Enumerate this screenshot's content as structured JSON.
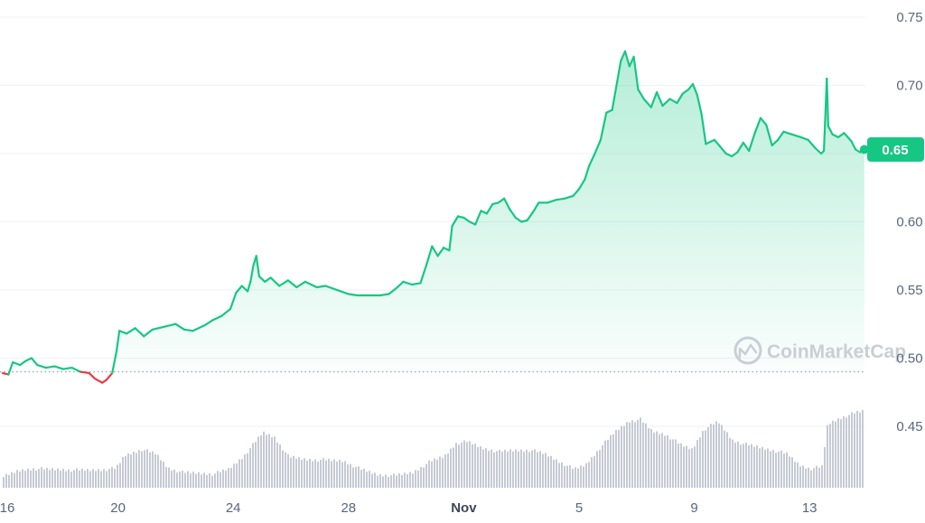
{
  "chart_data": {
    "type": "area",
    "watermark": "CoinMarketCap",
    "current_price_label": "0.65",
    "baseline_value": 0.49,
    "ylim": [
      0.41,
      0.755
    ],
    "y_ticks": [
      "0.75",
      "0.70",
      "0.65",
      "0.60",
      "0.55",
      "0.50",
      "0.45"
    ],
    "y_tick_values": [
      0.75,
      0.7,
      0.65,
      0.6,
      0.55,
      0.5,
      0.45
    ],
    "x_ticks": [
      "16",
      "20",
      "24",
      "28",
      "Nov",
      "5",
      "9",
      "13"
    ],
    "x_tick_days": [
      0,
      4,
      8,
      12,
      16,
      20,
      24,
      28
    ],
    "x_range_days": [
      0,
      29.9
    ],
    "grid": true,
    "colors": {
      "up": "#16c784",
      "down": "#ea3943",
      "volume": "#c5cad3",
      "grid": "#eff2f5",
      "label_bg": "#16c784"
    },
    "price_series": [
      [
        0.0,
        0.489
      ],
      [
        0.2,
        0.488
      ],
      [
        0.35,
        0.497
      ],
      [
        0.6,
        0.495
      ],
      [
        0.8,
        0.498
      ],
      [
        1.0,
        0.5
      ],
      [
        1.2,
        0.495
      ],
      [
        1.5,
        0.493
      ],
      [
        1.8,
        0.494
      ],
      [
        2.1,
        0.492
      ],
      [
        2.4,
        0.493
      ],
      [
        2.7,
        0.49
      ],
      [
        3.0,
        0.489
      ],
      [
        3.2,
        0.485
      ],
      [
        3.45,
        0.482
      ],
      [
        3.6,
        0.484
      ],
      [
        3.8,
        0.489
      ],
      [
        3.95,
        0.505
      ],
      [
        4.05,
        0.52
      ],
      [
        4.3,
        0.518
      ],
      [
        4.6,
        0.522
      ],
      [
        4.9,
        0.516
      ],
      [
        5.2,
        0.521
      ],
      [
        5.6,
        0.523
      ],
      [
        6.0,
        0.525
      ],
      [
        6.3,
        0.521
      ],
      [
        6.6,
        0.52
      ],
      [
        7.0,
        0.524
      ],
      [
        7.3,
        0.528
      ],
      [
        7.6,
        0.531
      ],
      [
        7.9,
        0.536
      ],
      [
        8.1,
        0.548
      ],
      [
        8.3,
        0.553
      ],
      [
        8.5,
        0.549
      ],
      [
        8.6,
        0.556
      ],
      [
        8.7,
        0.568
      ],
      [
        8.8,
        0.575
      ],
      [
        8.9,
        0.56
      ],
      [
        9.1,
        0.556
      ],
      [
        9.3,
        0.559
      ],
      [
        9.6,
        0.553
      ],
      [
        9.9,
        0.557
      ],
      [
        10.2,
        0.552
      ],
      [
        10.5,
        0.556
      ],
      [
        10.9,
        0.552
      ],
      [
        11.2,
        0.553
      ],
      [
        11.6,
        0.55
      ],
      [
        12.0,
        0.547
      ],
      [
        12.3,
        0.546
      ],
      [
        12.7,
        0.546
      ],
      [
        13.1,
        0.546
      ],
      [
        13.4,
        0.547
      ],
      [
        13.7,
        0.552
      ],
      [
        13.9,
        0.556
      ],
      [
        14.2,
        0.554
      ],
      [
        14.5,
        0.555
      ],
      [
        14.7,
        0.568
      ],
      [
        14.9,
        0.582
      ],
      [
        15.1,
        0.575
      ],
      [
        15.3,
        0.581
      ],
      [
        15.5,
        0.579
      ],
      [
        15.6,
        0.597
      ],
      [
        15.8,
        0.604
      ],
      [
        16.0,
        0.603
      ],
      [
        16.2,
        0.6
      ],
      [
        16.4,
        0.598
      ],
      [
        16.6,
        0.608
      ],
      [
        16.8,
        0.606
      ],
      [
        17.0,
        0.613
      ],
      [
        17.2,
        0.614
      ],
      [
        17.4,
        0.617
      ],
      [
        17.6,
        0.609
      ],
      [
        17.8,
        0.603
      ],
      [
        18.0,
        0.6
      ],
      [
        18.2,
        0.601
      ],
      [
        18.4,
        0.607
      ],
      [
        18.6,
        0.614
      ],
      [
        18.9,
        0.614
      ],
      [
        19.2,
        0.616
      ],
      [
        19.5,
        0.617
      ],
      [
        19.8,
        0.619
      ],
      [
        20.0,
        0.624
      ],
      [
        20.2,
        0.631
      ],
      [
        20.35,
        0.641
      ],
      [
        20.55,
        0.65
      ],
      [
        20.75,
        0.66
      ],
      [
        20.95,
        0.68
      ],
      [
        21.15,
        0.682
      ],
      [
        21.3,
        0.7
      ],
      [
        21.45,
        0.718
      ],
      [
        21.6,
        0.725
      ],
      [
        21.75,
        0.714
      ],
      [
        21.9,
        0.721
      ],
      [
        22.05,
        0.697
      ],
      [
        22.25,
        0.69
      ],
      [
        22.5,
        0.684
      ],
      [
        22.7,
        0.695
      ],
      [
        22.9,
        0.685
      ],
      [
        23.15,
        0.69
      ],
      [
        23.4,
        0.687
      ],
      [
        23.6,
        0.694
      ],
      [
        23.8,
        0.697
      ],
      [
        23.95,
        0.701
      ],
      [
        24.1,
        0.693
      ],
      [
        24.25,
        0.679
      ],
      [
        24.4,
        0.657
      ],
      [
        24.7,
        0.66
      ],
      [
        24.9,
        0.655
      ],
      [
        25.1,
        0.65
      ],
      [
        25.3,
        0.648
      ],
      [
        25.5,
        0.651
      ],
      [
        25.7,
        0.658
      ],
      [
        25.9,
        0.652
      ],
      [
        26.1,
        0.665
      ],
      [
        26.3,
        0.676
      ],
      [
        26.5,
        0.671
      ],
      [
        26.7,
        0.656
      ],
      [
        26.9,
        0.66
      ],
      [
        27.1,
        0.666
      ],
      [
        27.4,
        0.664
      ],
      [
        27.7,
        0.662
      ],
      [
        27.95,
        0.66
      ],
      [
        28.2,
        0.654
      ],
      [
        28.4,
        0.65
      ],
      [
        28.5,
        0.652
      ],
      [
        28.6,
        0.705
      ],
      [
        28.65,
        0.67
      ],
      [
        28.8,
        0.664
      ],
      [
        29.0,
        0.662
      ],
      [
        29.2,
        0.665
      ],
      [
        29.45,
        0.659
      ],
      [
        29.6,
        0.653
      ],
      [
        29.75,
        0.651
      ],
      [
        29.9,
        0.653
      ]
    ],
    "volume_profile": [
      [
        0.0,
        0.14
      ],
      [
        0.5,
        0.22
      ],
      [
        1.0,
        0.25
      ],
      [
        1.5,
        0.24
      ],
      [
        2.0,
        0.24
      ],
      [
        2.5,
        0.23
      ],
      [
        3.0,
        0.23
      ],
      [
        3.5,
        0.24
      ],
      [
        3.9,
        0.25
      ],
      [
        4.2,
        0.42
      ],
      [
        4.8,
        0.5
      ],
      [
        5.3,
        0.44
      ],
      [
        5.7,
        0.26
      ],
      [
        6.2,
        0.2
      ],
      [
        6.8,
        0.19
      ],
      [
        7.3,
        0.18
      ],
      [
        7.8,
        0.24
      ],
      [
        8.3,
        0.4
      ],
      [
        8.7,
        0.58
      ],
      [
        9.0,
        0.72
      ],
      [
        9.4,
        0.66
      ],
      [
        9.9,
        0.4
      ],
      [
        10.5,
        0.37
      ],
      [
        11.2,
        0.36
      ],
      [
        11.8,
        0.35
      ],
      [
        12.4,
        0.24
      ],
      [
        13.0,
        0.17
      ],
      [
        13.6,
        0.16
      ],
      [
        14.2,
        0.2
      ],
      [
        14.8,
        0.34
      ],
      [
        15.3,
        0.41
      ],
      [
        15.7,
        0.58
      ],
      [
        16.1,
        0.6
      ],
      [
        16.6,
        0.52
      ],
      [
        17.2,
        0.47
      ],
      [
        17.8,
        0.49
      ],
      [
        18.3,
        0.49
      ],
      [
        18.8,
        0.44
      ],
      [
        19.3,
        0.34
      ],
      [
        19.8,
        0.24
      ],
      [
        20.2,
        0.3
      ],
      [
        20.7,
        0.52
      ],
      [
        21.2,
        0.72
      ],
      [
        21.7,
        0.87
      ],
      [
        22.1,
        0.89
      ],
      [
        22.5,
        0.74
      ],
      [
        23.0,
        0.69
      ],
      [
        23.5,
        0.56
      ],
      [
        23.9,
        0.5
      ],
      [
        24.3,
        0.76
      ],
      [
        24.8,
        0.86
      ],
      [
        25.3,
        0.62
      ],
      [
        25.7,
        0.57
      ],
      [
        26.2,
        0.53
      ],
      [
        26.7,
        0.49
      ],
      [
        27.2,
        0.44
      ],
      [
        27.6,
        0.3
      ],
      [
        28.0,
        0.25
      ],
      [
        28.4,
        0.27
      ],
      [
        28.6,
        0.83
      ],
      [
        29.1,
        0.92
      ],
      [
        29.6,
        0.98
      ],
      [
        29.9,
        1.0
      ]
    ]
  }
}
